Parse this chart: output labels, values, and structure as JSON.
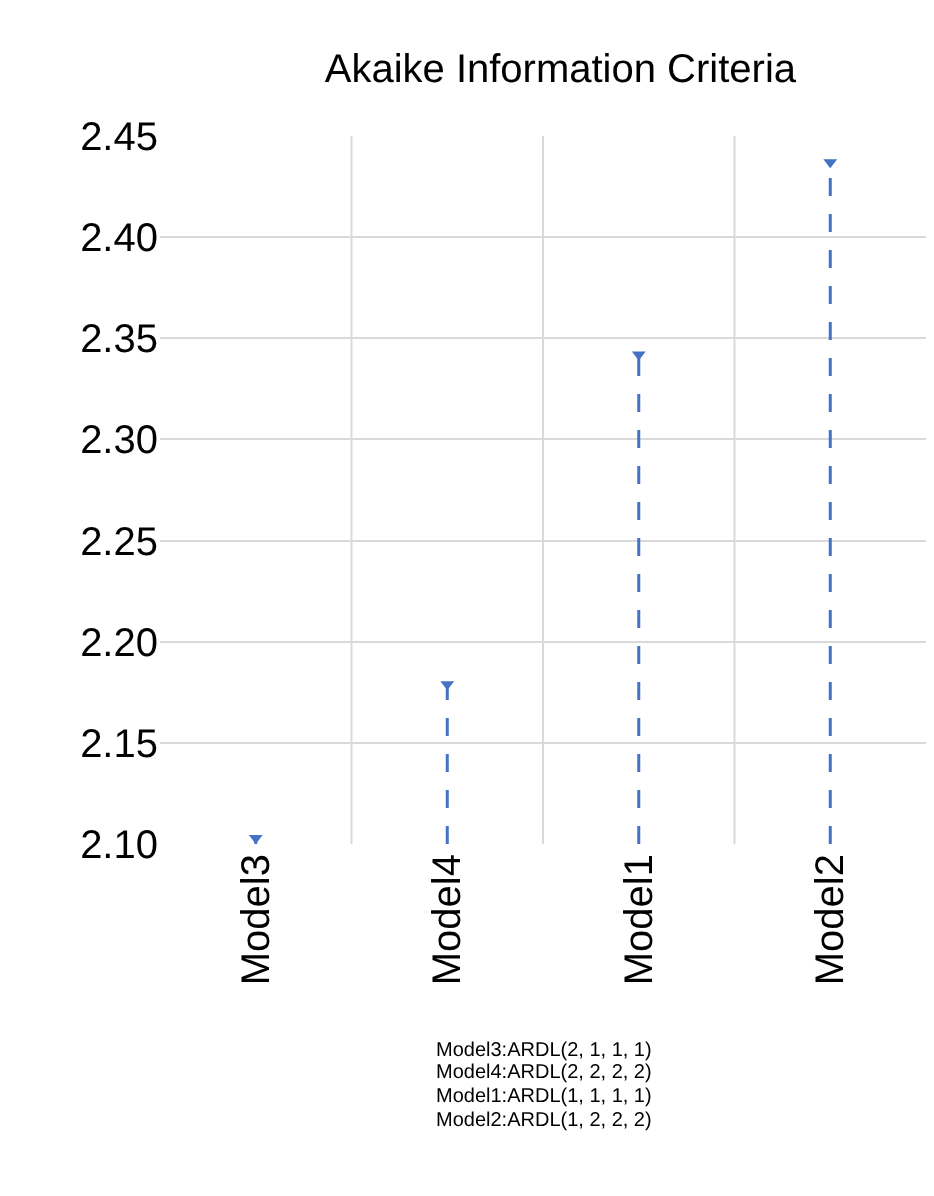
{
  "chart_data": {
    "type": "lollipop",
    "title": "Akaike Information Criteria",
    "categories": [
      "Model3",
      "Model4",
      "Model1",
      "Model2"
    ],
    "values": [
      2.103,
      2.179,
      2.342,
      2.437
    ],
    "color": "#4472c4",
    "marker": "triangle",
    "line_style": "dashed",
    "ylim": [
      2.1,
      2.45
    ],
    "yticks": [
      {
        "value": 2.1,
        "label": "2.10"
      },
      {
        "value": 2.15,
        "label": "2.15"
      },
      {
        "value": 2.2,
        "label": "2.20"
      },
      {
        "value": 2.25,
        "label": "2.25"
      },
      {
        "value": 2.3,
        "label": "2.30"
      },
      {
        "value": 2.35,
        "label": "2.35"
      },
      {
        "value": 2.4,
        "label": "2.40"
      },
      {
        "value": 2.45,
        "label": "2.45"
      }
    ],
    "grid": true,
    "annotations": [
      "Model3:ARDL(2, 1, 1, 1)",
      "Model4:ARDL(2, 2, 2, 2)",
      "Model1:ARDL(1, 1, 1, 1)",
      "Model2:ARDL(1, 2, 2, 2)"
    ]
  }
}
